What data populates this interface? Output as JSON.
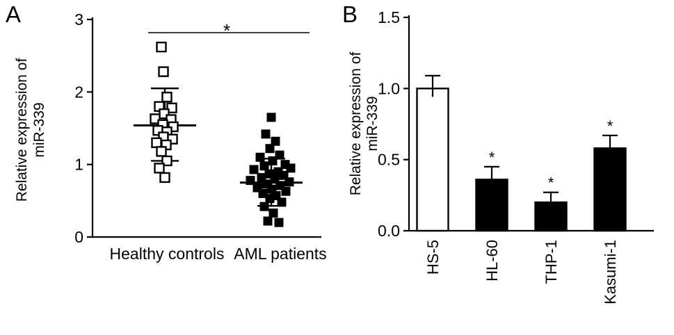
{
  "figure": {
    "background": "#ffffff",
    "ink": "#000000"
  },
  "panels": {
    "a": {
      "label": "A"
    },
    "b": {
      "label": "B"
    }
  },
  "chart_data": [
    {
      "panel": "A",
      "type": "scatter",
      "title": "",
      "ylabel_lines": [
        "Relative expression of",
        "miR-339"
      ],
      "ylim": [
        0,
        3
      ],
      "yticks": [
        {
          "v": 0,
          "label": "0"
        },
        {
          "v": 1,
          "label": "1"
        },
        {
          "v": 2,
          "label": "2"
        },
        {
          "v": 3,
          "label": "3"
        }
      ],
      "categories": [
        "Healthy controls",
        "AML patients"
      ],
      "significance": {
        "label": "*",
        "between": [
          "Healthy controls",
          "AML patients"
        ]
      },
      "groups": [
        {
          "name": "Healthy controls",
          "marker": "open-square",
          "mean": 1.54,
          "sd_high": 2.05,
          "sd_low": 1.05,
          "points": [
            {
              "y": 2.62,
              "dx": -5
            },
            {
              "y": 2.28,
              "dx": -2
            },
            {
              "y": 1.93,
              "dx": 3
            },
            {
              "y": 1.8,
              "dx": -8
            },
            {
              "y": 1.78,
              "dx": 10
            },
            {
              "y": 1.7,
              "dx": -1
            },
            {
              "y": 1.63,
              "dx": -14
            },
            {
              "y": 1.62,
              "dx": 9
            },
            {
              "y": 1.55,
              "dx": -3
            },
            {
              "y": 1.52,
              "dx": 12
            },
            {
              "y": 1.47,
              "dx": -10
            },
            {
              "y": 1.45,
              "dx": 3
            },
            {
              "y": 1.38,
              "dx": -2
            },
            {
              "y": 1.35,
              "dx": 11
            },
            {
              "y": 1.3,
              "dx": -12
            },
            {
              "y": 1.27,
              "dx": 2
            },
            {
              "y": 1.18,
              "dx": -5
            },
            {
              "y": 1.05,
              "dx": 3
            },
            {
              "y": 0.95,
              "dx": -8
            },
            {
              "y": 0.82,
              "dx": 0
            }
          ]
        },
        {
          "name": "AML patients",
          "marker": "filled-square",
          "mean": 0.75,
          "sd_high": 1.08,
          "sd_low": 0.43,
          "points": [
            {
              "y": 1.65,
              "dx": 0
            },
            {
              "y": 1.42,
              "dx": -8
            },
            {
              "y": 1.32,
              "dx": 6
            },
            {
              "y": 1.22,
              "dx": -2
            },
            {
              "y": 1.13,
              "dx": 12
            },
            {
              "y": 1.1,
              "dx": -16
            },
            {
              "y": 1.05,
              "dx": 2
            },
            {
              "y": 1.0,
              "dx": 20
            },
            {
              "y": 0.98,
              "dx": -10
            },
            {
              "y": 0.95,
              "dx": 28
            },
            {
              "y": 0.93,
              "dx": -25
            },
            {
              "y": 0.9,
              "dx": 10
            },
            {
              "y": 0.87,
              "dx": -3
            },
            {
              "y": 0.85,
              "dx": 18
            },
            {
              "y": 0.82,
              "dx": -14
            },
            {
              "y": 0.8,
              "dx": 5
            },
            {
              "y": 0.78,
              "dx": -30
            },
            {
              "y": 0.76,
              "dx": 26
            },
            {
              "y": 0.73,
              "dx": -7
            },
            {
              "y": 0.71,
              "dx": 13
            },
            {
              "y": 0.68,
              "dx": -20
            },
            {
              "y": 0.66,
              "dx": 1
            },
            {
              "y": 0.63,
              "dx": 21
            },
            {
              "y": 0.6,
              "dx": -12
            },
            {
              "y": 0.57,
              "dx": 7
            },
            {
              "y": 0.53,
              "dx": -2
            },
            {
              "y": 0.48,
              "dx": 15
            },
            {
              "y": 0.42,
              "dx": -10
            },
            {
              "y": 0.33,
              "dx": 3
            },
            {
              "y": 0.22,
              "dx": -5
            },
            {
              "y": 0.2,
              "dx": 11
            }
          ]
        }
      ]
    },
    {
      "panel": "B",
      "type": "bar",
      "title": "",
      "ylabel_lines": [
        "Relative expression of",
        "miR-339"
      ],
      "ylim": [
        0,
        1.5
      ],
      "yticks": [
        {
          "v": 0,
          "label": "0.0"
        },
        {
          "v": 0.5,
          "label": "0.5"
        },
        {
          "v": 1,
          "label": "1.0"
        },
        {
          "v": 1.5,
          "label": "1.5"
        }
      ],
      "categories": [
        "HS-5",
        "HL-60",
        "THP-1",
        "Kasumi-1"
      ],
      "values": [
        1.0,
        0.36,
        0.2,
        0.58
      ],
      "errors": [
        0.09,
        0.09,
        0.07,
        0.09
      ],
      "bar_fills": [
        "#ffffff",
        "#000000",
        "#000000",
        "#000000"
      ],
      "sig_labels": [
        "",
        "*",
        "*",
        "*"
      ]
    }
  ]
}
